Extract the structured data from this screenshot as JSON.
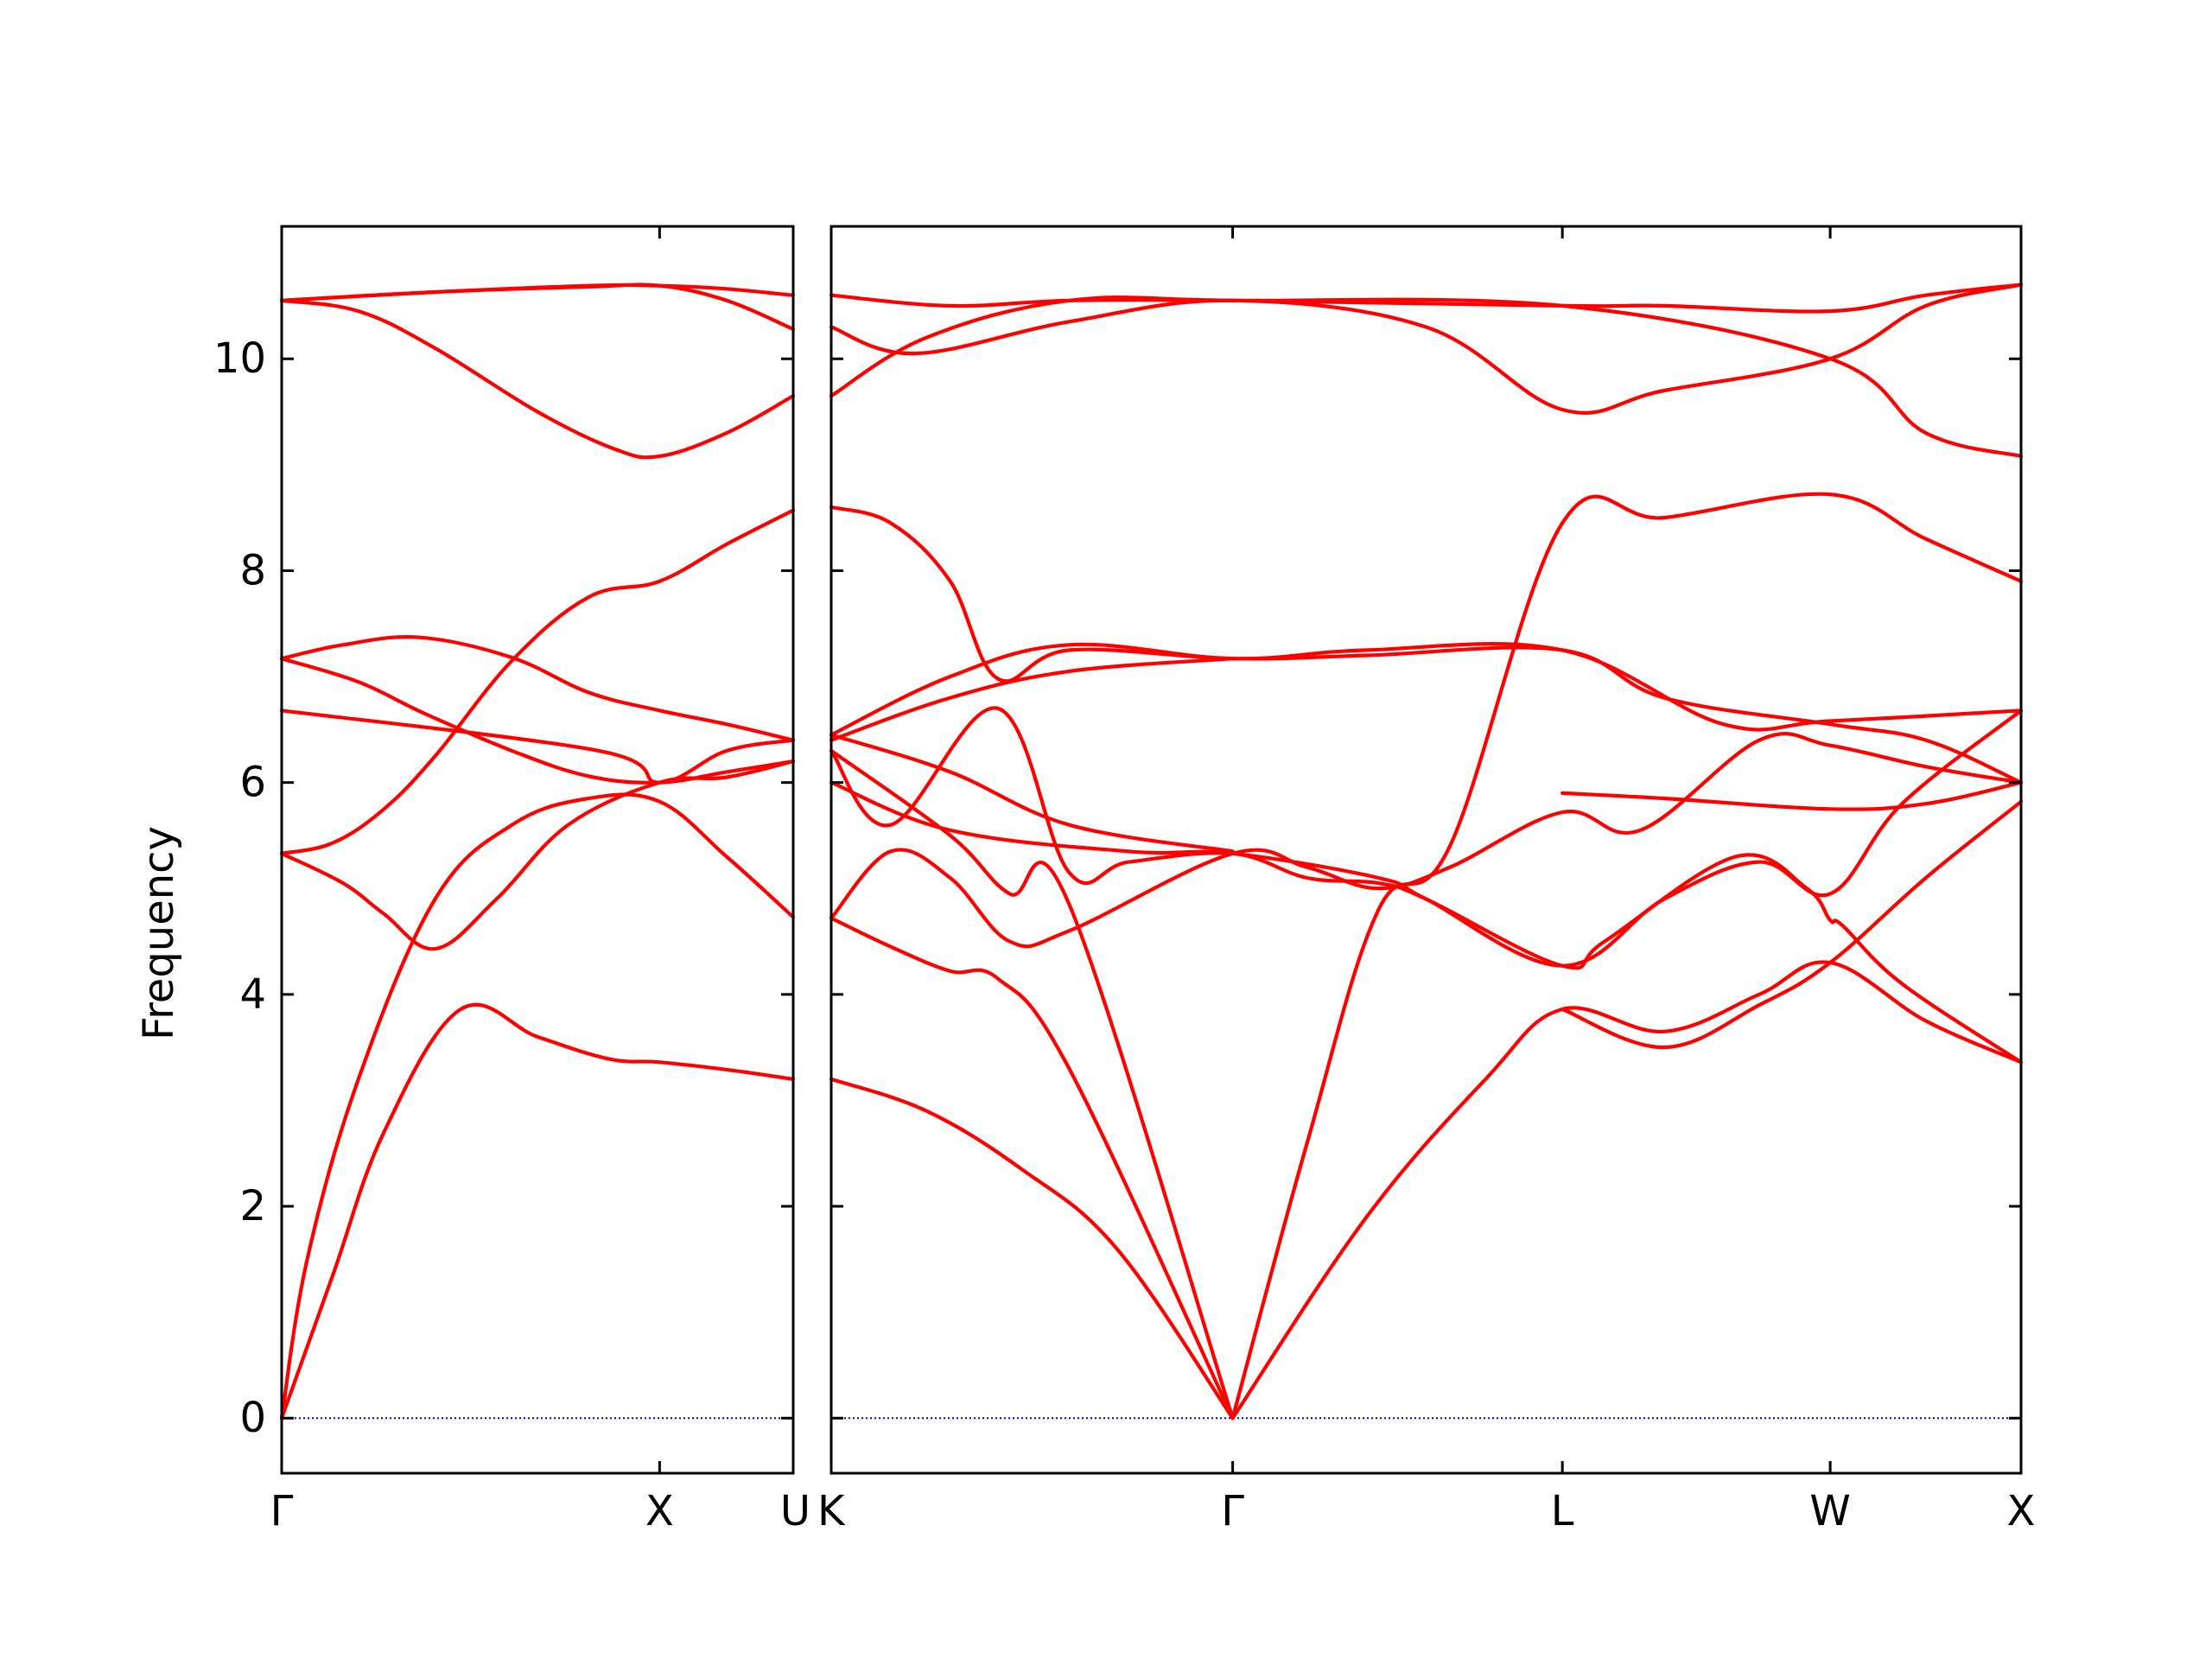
{
  "chart_data": {
    "type": "line",
    "title": "",
    "ylabel": "Frequency",
    "xlabel": "",
    "ylim": [
      -0.52,
      11.25
    ],
    "yticks": [
      0,
      2,
      4,
      6,
      8,
      10
    ],
    "grid": false,
    "legend": "none",
    "colors": {
      "band": "#ff0000",
      "zero_line": "#0000cc",
      "axes": "#000000"
    },
    "segments": [
      {
        "labels": [
          "Γ",
          "X",
          "U"
        ],
        "label_positions": [
          0,
          0.7388,
          1
        ]
      },
      {
        "labels": [
          "K",
          "Γ",
          "L",
          "W",
          "X"
        ],
        "label_positions": [
          0,
          0.3374,
          0.6145,
          0.8396,
          1
        ]
      }
    ],
    "series": [
      {
        "panel": 0,
        "points": [
          [
            0,
            0
          ],
          [
            0.05,
            1.5
          ],
          [
            0.15,
            3.2
          ],
          [
            0.3,
            4.9
          ],
          [
            0.45,
            5.6
          ],
          [
            0.6,
            5.85
          ],
          [
            0.7388,
            5.82
          ],
          [
            0.87,
            5.3
          ],
          [
            1,
            4.73
          ]
        ]
      },
      {
        "panel": 0,
        "points": [
          [
            0,
            0
          ],
          [
            0.1,
            1.35
          ],
          [
            0.2,
            2.7
          ],
          [
            0.35,
            3.86
          ],
          [
            0.5,
            3.6
          ],
          [
            0.64,
            3.39
          ],
          [
            0.7388,
            3.36
          ],
          [
            0.87,
            3.29
          ],
          [
            1,
            3.2
          ]
        ]
      },
      {
        "panel": 0,
        "points": [
          [
            0,
            5.33
          ],
          [
            0.12,
            5.05
          ],
          [
            0.2,
            4.76
          ],
          [
            0.3,
            4.43
          ],
          [
            0.42,
            4.9
          ],
          [
            0.56,
            5.6
          ],
          [
            0.7388,
            6.0
          ],
          [
            0.87,
            6.05
          ],
          [
            1,
            6.2
          ]
        ]
      },
      {
        "panel": 0,
        "points": [
          [
            0,
            5.33
          ],
          [
            0.1,
            5.43
          ],
          [
            0.2,
            5.75
          ],
          [
            0.3,
            6.25
          ],
          [
            0.45,
            7.15
          ],
          [
            0.6,
            7.75
          ],
          [
            0.7388,
            7.9
          ],
          [
            0.87,
            8.25
          ],
          [
            1,
            8.57
          ]
        ]
      },
      {
        "panel": 0,
        "points": [
          [
            0,
            7.17
          ],
          [
            0.15,
            6.95
          ],
          [
            0.28,
            6.65
          ],
          [
            0.45,
            6.3
          ],
          [
            0.6,
            6.06
          ],
          [
            0.7388,
            6.0
          ],
          [
            0.87,
            6.1
          ],
          [
            1,
            6.2
          ]
        ]
      },
      {
        "panel": 0,
        "points": [
          [
            0,
            7.17
          ],
          [
            0.12,
            7.3
          ],
          [
            0.27,
            7.37
          ],
          [
            0.45,
            7.18
          ],
          [
            0.6,
            6.85
          ],
          [
            0.7388,
            6.68
          ],
          [
            0.87,
            6.55
          ],
          [
            1,
            6.4
          ]
        ]
      },
      {
        "panel": 0,
        "points": [
          [
            0,
            6.68
          ],
          [
            0.62,
            6.3
          ],
          [
            0.7388,
            6.0
          ],
          [
            0.87,
            6.3
          ],
          [
            1,
            6.4
          ]
        ]
      },
      {
        "panel": 0,
        "points": [
          [
            0,
            10.55
          ],
          [
            0.15,
            10.45
          ],
          [
            0.3,
            10.1
          ],
          [
            0.5,
            9.5
          ],
          [
            0.65,
            9.15
          ],
          [
            0.7388,
            9.08
          ],
          [
            0.87,
            9.3
          ],
          [
            1,
            9.65
          ]
        ]
      },
      {
        "panel": 0,
        "points": [
          [
            0,
            10.55
          ],
          [
            0.3,
            10.63
          ],
          [
            0.6,
            10.68
          ],
          [
            0.7388,
            10.69
          ],
          [
            0.87,
            10.55
          ],
          [
            1,
            10.28
          ]
        ]
      },
      {
        "panel": 0,
        "points": [
          [
            0,
            10.55
          ],
          [
            0.3,
            10.63
          ],
          [
            0.6,
            10.69
          ],
          [
            0.7388,
            10.69
          ],
          [
            0.87,
            10.66
          ],
          [
            1,
            10.6
          ]
        ]
      },
      {
        "panel": 1,
        "points": [
          [
            0,
            3.2
          ],
          [
            0.08,
            2.9
          ],
          [
            0.16,
            2.35
          ],
          [
            0.24,
            1.6
          ],
          [
            0.3374,
            0
          ]
        ]
      },
      {
        "panel": 1,
        "points": [
          [
            0,
            4.72
          ],
          [
            0.05,
            4.45
          ],
          [
            0.1,
            4.22
          ],
          [
            0.14,
            4.15
          ],
          [
            0.2,
            3.3
          ],
          [
            0.3374,
            0
          ]
        ]
      },
      {
        "panel": 1,
        "points": [
          [
            0,
            6.3
          ],
          [
            0.1,
            5.5
          ],
          [
            0.15,
            4.95
          ],
          [
            0.2,
            4.85
          ],
          [
            0.3374,
            0
          ]
        ]
      },
      {
        "panel": 1,
        "points": [
          [
            0,
            6.3
          ],
          [
            0.05,
            5.6
          ],
          [
            0.14,
            6.7
          ],
          [
            0.2,
            5.15
          ],
          [
            0.25,
            5.25
          ],
          [
            0.3374,
            5.33
          ],
          [
            0.4,
            5.1
          ],
          [
            0.46,
            5.05
          ],
          [
            0.5,
            4.9
          ],
          [
            0.6145,
            4.27
          ],
          [
            0.65,
            4.5
          ],
          [
            0.76,
            5.3
          ],
          [
            0.82,
            5.0
          ],
          [
            0.8396,
            4.7
          ],
          [
            0.85,
            4.65
          ],
          [
            0.9,
            4.1
          ],
          [
            1,
            3.36
          ]
        ]
      },
      {
        "panel": 1,
        "points": [
          [
            0,
            4.72
          ],
          [
            0.05,
            5.35
          ],
          [
            0.1,
            5.1
          ],
          [
            0.15,
            4.5
          ],
          [
            0.2,
            4.6
          ],
          [
            0.3374,
            5.33
          ],
          [
            0.4,
            5.2
          ],
          [
            0.46,
            5.0
          ],
          [
            0.52,
            5.2
          ],
          [
            0.6145,
            5.72
          ],
          [
            0.68,
            5.55
          ],
          [
            0.78,
            6.4
          ],
          [
            0.8396,
            6.35
          ],
          [
            0.92,
            6.15
          ],
          [
            1,
            6.0
          ]
        ]
      },
      {
        "panel": 1,
        "points": [
          [
            0,
            6.0
          ],
          [
            0.1,
            5.55
          ],
          [
            0.25,
            5.35
          ],
          [
            0.3374,
            5.33
          ],
          [
            0.46,
            5.1
          ],
          [
            0.5,
            4.9
          ],
          [
            0.6145,
            4.27
          ],
          [
            0.7,
            4.9
          ],
          [
            0.78,
            5.25
          ],
          [
            0.8396,
            4.95
          ],
          [
            0.9,
            5.8
          ],
          [
            1,
            6.68
          ]
        ]
      },
      {
        "panel": 1,
        "points": [
          [
            0,
            6.45
          ],
          [
            0.1,
            6.1
          ],
          [
            0.2,
            5.6
          ],
          [
            0.3374,
            5.35
          ]
        ]
      },
      {
        "panel": 1,
        "points": [
          [
            0,
            6.4
          ],
          [
            0.1,
            6.8
          ],
          [
            0.2,
            7.05
          ],
          [
            0.3374,
            7.17
          ]
        ]
      },
      {
        "panel": 1,
        "points": [
          [
            0,
            6.45
          ],
          [
            0.1,
            7.0
          ],
          [
            0.2,
            7.3
          ],
          [
            0.3374,
            7.17
          ],
          [
            0.45,
            7.25
          ],
          [
            0.6145,
            7.25
          ],
          [
            0.75,
            6.55
          ],
          [
            0.8396,
            6.58
          ],
          [
            1,
            6.68
          ]
        ]
      },
      {
        "panel": 1,
        "points": [
          [
            0,
            8.6
          ],
          [
            0.05,
            8.45
          ],
          [
            0.1,
            7.9
          ],
          [
            0.14,
            6.98
          ],
          [
            0.2,
            7.25
          ],
          [
            0.3374,
            7.17
          ],
          [
            0.45,
            7.2
          ],
          [
            0.6145,
            7.25
          ],
          [
            0.7,
            6.8
          ],
          [
            0.8396,
            6.55
          ],
          [
            0.92,
            6.4
          ],
          [
            1,
            6.0
          ]
        ]
      },
      {
        "panel": 1,
        "points": [
          [
            0,
            10.6
          ],
          [
            0.1,
            10.5
          ],
          [
            0.2,
            10.55
          ],
          [
            0.3374,
            10.55
          ],
          [
            0.6145,
            10.5
          ],
          [
            0.7,
            10.5
          ],
          [
            0.8396,
            10.45
          ],
          [
            0.92,
            10.6
          ],
          [
            1,
            10.7
          ]
        ]
      },
      {
        "panel": 1,
        "points": [
          [
            0,
            9.65
          ],
          [
            0.08,
            10.2
          ],
          [
            0.2,
            10.55
          ],
          [
            0.3374,
            10.55
          ],
          [
            0.6145,
            10.5
          ],
          [
            0.8396,
            10.0
          ],
          [
            0.92,
            9.3
          ],
          [
            1,
            9.08
          ]
        ]
      },
      {
        "panel": 1,
        "points": [
          [
            0,
            10.3
          ],
          [
            0.07,
            10.05
          ],
          [
            0.2,
            10.35
          ],
          [
            0.3374,
            10.55
          ],
          [
            0.5,
            10.3
          ],
          [
            0.6145,
            9.52
          ],
          [
            0.7,
            9.7
          ],
          [
            0.8396,
            10.0
          ],
          [
            0.92,
            10.5
          ],
          [
            1,
            10.7
          ]
        ]
      },
      {
        "panel": 1,
        "points": [
          [
            0.3374,
            0
          ],
          [
            0.4,
            2.6
          ],
          [
            0.46,
            4.8
          ],
          [
            0.52,
            5.4
          ],
          [
            0.6145,
            8.45
          ],
          [
            0.7,
            8.5
          ],
          [
            0.8396,
            8.72
          ],
          [
            0.92,
            8.3
          ],
          [
            1,
            7.9
          ]
        ]
      },
      {
        "panel": 1,
        "points": [
          [
            0.3374,
            0
          ],
          [
            0.45,
            1.9
          ],
          [
            0.55,
            3.2
          ],
          [
            0.6145,
            3.86
          ],
          [
            0.7,
            3.65
          ],
          [
            0.78,
            4.0
          ],
          [
            0.8396,
            4.3
          ],
          [
            0.92,
            3.75
          ],
          [
            1,
            3.36
          ]
        ]
      },
      {
        "panel": 1,
        "points": [
          [
            0.6145,
            3.86
          ],
          [
            0.7,
            3.5
          ],
          [
            0.78,
            3.9
          ],
          [
            0.8396,
            4.3
          ],
          [
            0.92,
            5.1
          ],
          [
            1,
            5.82
          ]
        ]
      },
      {
        "panel": 1,
        "points": [
          [
            0.6145,
            5.9
          ],
          [
            0.7,
            5.85
          ],
          [
            0.8396,
            5.75
          ],
          [
            0.92,
            5.8
          ],
          [
            1,
            6.0
          ]
        ]
      }
    ]
  }
}
